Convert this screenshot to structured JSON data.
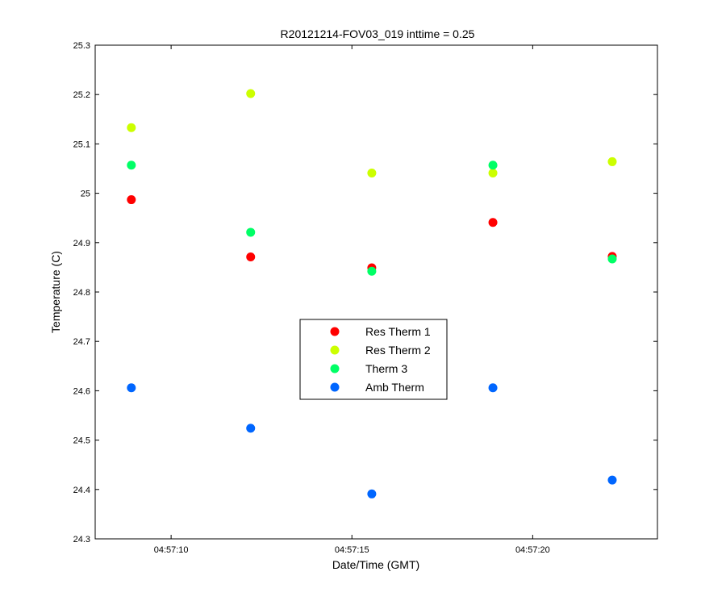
{
  "chart_data": {
    "type": "scatter",
    "title": "R20121214-FOV03_019 inttime = 0.25",
    "xlabel": "Date/Time (GMT)",
    "ylabel": "Temperature (C)",
    "x_ticks": [
      "04:57:10",
      "04:57:15",
      "04:57:20"
    ],
    "x_tick_values": [
      10,
      15,
      20
    ],
    "y_ticks": [
      "24.3",
      "24.4",
      "24.5",
      "24.6",
      "24.7",
      "24.8",
      "24.9",
      "25",
      "25.1",
      "25.2",
      "25.3"
    ],
    "xlim": [
      7.9,
      23.45
    ],
    "ylim": [
      24.3,
      25.3
    ],
    "grid": false,
    "legend_position": "center",
    "x": [
      8.9,
      12.2,
      15.55,
      18.9,
      22.2
    ],
    "series": [
      {
        "name": "Res Therm 1",
        "color": "#ff0000",
        "values": [
          24.987,
          24.871,
          24.849,
          24.941,
          24.872
        ]
      },
      {
        "name": "Res Therm 2",
        "color": "#ccff00",
        "values": [
          25.133,
          25.202,
          25.041,
          25.041,
          25.064
        ]
      },
      {
        "name": "Therm 3",
        "color": "#00ff66",
        "values": [
          25.057,
          24.921,
          24.842,
          25.057,
          24.867
        ]
      },
      {
        "name": "Amb Therm",
        "color": "#0066ff",
        "values": [
          24.606,
          24.524,
          24.391,
          24.606,
          24.419
        ]
      }
    ]
  }
}
